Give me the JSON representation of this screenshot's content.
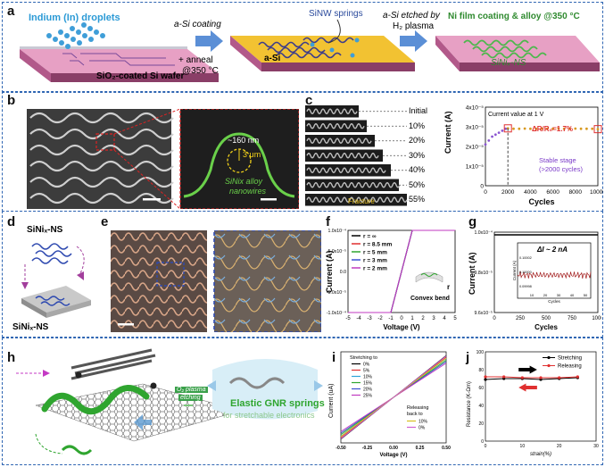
{
  "panels": {
    "a": {
      "label": "a",
      "indium": "Indium (In) droplets",
      "step1_top": "a-Si coating",
      "step1_bottom1": "+ anneal",
      "step1_bottom2": "@350 °C",
      "sinw": "SiNW springs",
      "asi": "a-Si",
      "step2_top1": "a-Si etched by",
      "step2_top2": "H₂ plasma",
      "step3_top": "Ni film coating & alloy @350 °C",
      "wafer": "SiO₂-coated Si wafer",
      "sinix": "SiNiₓ-NS"
    },
    "b": {
      "label": "b",
      "dim1": "~160 nm",
      "dim2": "3 μm",
      "caption1": "SiNix alloy",
      "caption2": "nanowires"
    },
    "c": {
      "label": "c",
      "strains": [
        "Initial",
        "10%",
        "20%",
        "30%",
        "40%",
        "50%",
        "55%"
      ],
      "fracture": "Fracture",
      "plot_title": "Current value at 1 V",
      "delta": "ΔR/R₀=1.7%",
      "stable1": "Stable stage",
      "stable2": "(>2000 cycles)",
      "ylabel": "Current (A)",
      "xlabel": "Cycles",
      "yticks": [
        "0",
        "1x10⁻⁵",
        "2x10⁻⁵",
        "3x10⁻⁵",
        "4x10⁻⁵"
      ],
      "xticks": [
        "0",
        "2000",
        "4000",
        "6000",
        "8000",
        "10000"
      ]
    },
    "d": {
      "label": "d",
      "top": "SiNiₓ-NS",
      "bottom": "SiNiₓ-NS"
    },
    "e": {
      "label": "e"
    },
    "f": {
      "label": "f",
      "ylabel": "Current (A)",
      "xlabel": "Voltage (V)",
      "yticks": [
        "1.0x10⁻⁴",
        "5.0x10⁻⁵",
        "0.0",
        "-5.0x10⁻⁵",
        "-1.0x10⁻⁴"
      ],
      "xticks": [
        "-5",
        "-4",
        "-3",
        "-2",
        "-1",
        "0",
        "1",
        "2",
        "3",
        "4",
        "5"
      ],
      "legend": [
        "r = ∞",
        "r = 8.5 mm",
        "r = 5 mm",
        "r = 3 mm",
        "r = 2 mm"
      ],
      "convex": "Convex bend",
      "r": "r"
    },
    "g": {
      "label": "g",
      "ylabel": "Current (A)",
      "xlabel": "Cycles",
      "yticks": [
        "1.0x10⁻⁴",
        "9.8x10⁻⁵",
        "9.6x10⁻⁵"
      ],
      "xticks": [
        "0",
        "250",
        "500",
        "750",
        "1000"
      ],
      "inset_label": "ΔI ~ 2 nA",
      "inset_ylabel": "Current (A)",
      "inset_xlabel": "Cycles",
      "inset_yticks": [
        "0.10002",
        "0.10000",
        "0.09998"
      ],
      "inset_xticks": [
        "10",
        "20",
        "30",
        "40",
        "50"
      ]
    },
    "h": {
      "label": "h",
      "plasma1": "O₂ plasma",
      "plasma2": "etching",
      "title1": "Elastic GNR springs",
      "title2": "for stretchable electronics"
    },
    "i": {
      "label": "i",
      "ylabel": "Current (uA)",
      "xlabel": "Voltage (V)",
      "xticks": [
        "-0.50",
        "-0.25",
        "0.00",
        "0.25",
        "0.50"
      ],
      "yticks": [
        "-10",
        "-5",
        "0",
        "5",
        "10"
      ],
      "legend_title": "Stretching to",
      "legend": [
        "0%",
        "5%",
        "10%",
        "15%",
        "20%",
        "25%"
      ],
      "release_title1": "Releasing",
      "release_title2": "back to",
      "release": [
        "10%",
        "0%"
      ]
    },
    "j": {
      "label": "j",
      "ylabel": "Resistance (K-Ωm)",
      "xlabel": "strain(%)",
      "xticks": [
        "0",
        "10",
        "20",
        "30"
      ],
      "yticks": [
        "0",
        "20",
        "40",
        "60",
        "80",
        "100"
      ],
      "legend": [
        "Stretching",
        "Releasing"
      ]
    }
  },
  "chart_data": [
    {
      "type": "scatter",
      "panel": "c",
      "title": "Current value at 1 V",
      "xlabel": "Cycles",
      "ylabel": "Current (A)",
      "xlim": [
        0,
        10000
      ],
      "ylim": [
        0,
        4e-05
      ],
      "series": [
        {
          "values_x": [
            0,
            300,
            600,
            900,
            1200,
            1500,
            1800,
            2000,
            2500,
            3000,
            3500,
            4000,
            4500,
            5000,
            5500,
            6000,
            6500,
            7000,
            7500,
            8000,
            8500,
            9000,
            9500,
            10000
          ],
          "values": [
            2.1e-05,
            2.3e-05,
            2.5e-05,
            2.6e-05,
            2.7e-05,
            2.8e-05,
            2.9e-05,
            2.92e-05,
            2.9e-05,
            2.9e-05,
            2.91e-05,
            2.9e-05,
            2.9e-05,
            2.91e-05,
            2.9e-05,
            2.9e-05,
            2.91e-05,
            2.9e-05,
            2.9e-05,
            2.91e-05,
            2.9e-05,
            2.9e-05,
            2.9e-05,
            2.88e-05
          ]
        }
      ]
    },
    {
      "type": "line",
      "panel": "f",
      "xlabel": "Voltage (V)",
      "ylabel": "Current (A)",
      "xlim": [
        -5,
        5
      ],
      "ylim": [
        -0.0001,
        0.0001
      ],
      "series": [
        {
          "name": "r = ∞",
          "x": [
            -5,
            -1,
            1,
            5
          ],
          "values": [
            -0.0001,
            -0.0001,
            0.0001,
            0.0001
          ]
        },
        {
          "name": "r = 8.5 mm",
          "x": [
            -5,
            -1,
            1,
            5
          ],
          "values": [
            -0.0001,
            -0.0001,
            0.0001,
            0.0001
          ]
        },
        {
          "name": "r = 5 mm",
          "x": [
            -5,
            -1,
            1,
            5
          ],
          "values": [
            -0.0001,
            -0.0001,
            0.0001,
            0.0001
          ]
        },
        {
          "name": "r = 3 mm",
          "x": [
            -5,
            -1,
            1,
            5
          ],
          "values": [
            -0.0001,
            -0.0001,
            0.0001,
            0.0001
          ]
        },
        {
          "name": "r = 2 mm",
          "x": [
            -5,
            -1,
            1,
            5
          ],
          "values": [
            -0.0001,
            -0.0001,
            0.0001,
            0.0001
          ]
        }
      ]
    },
    {
      "type": "line",
      "panel": "g",
      "xlabel": "Cycles",
      "ylabel": "Current (A)",
      "xlim": [
        0,
        1000
      ],
      "ylim": [
        9.6e-05,
        0.0001
      ],
      "series": [
        {
          "x": [
            0,
            1000
          ],
          "values": [
            9.98e-05,
            9.98e-05
          ]
        }
      ]
    },
    {
      "type": "line",
      "panel": "i",
      "xlabel": "Voltage (V)",
      "ylabel": "Current (uA)",
      "xlim": [
        -0.5,
        0.5
      ],
      "ylim": [
        -12,
        12
      ],
      "series": [
        {
          "name": "0%",
          "x": [
            -0.5,
            0.5
          ],
          "values": [
            -11,
            11
          ]
        },
        {
          "name": "5%",
          "x": [
            -0.5,
            0.5
          ],
          "values": [
            -10.6,
            10.6
          ]
        },
        {
          "name": "10%",
          "x": [
            -0.5,
            0.5
          ],
          "values": [
            -10.2,
            10.2
          ]
        },
        {
          "name": "15%",
          "x": [
            -0.5,
            0.5
          ],
          "values": [
            -9.8,
            9.8
          ]
        },
        {
          "name": "20%",
          "x": [
            -0.5,
            0.5
          ],
          "values": [
            -9.4,
            9.4
          ]
        },
        {
          "name": "25%",
          "x": [
            -0.5,
            0.5
          ],
          "values": [
            -9.0,
            9.0
          ]
        },
        {
          "name": "10%",
          "x": [
            -0.5,
            0.5
          ],
          "values": [
            -10.3,
            10.3
          ]
        },
        {
          "name": "0%",
          "x": [
            -0.5,
            0.5
          ],
          "values": [
            -10.9,
            10.9
          ]
        }
      ]
    },
    {
      "type": "line",
      "panel": "j",
      "xlabel": "strain(%)",
      "ylabel": "Resistance (K-Ωm)",
      "xlim": [
        0,
        30
      ],
      "ylim": [
        0,
        100
      ],
      "series": [
        {
          "name": "Stretching",
          "x": [
            0,
            5,
            10,
            15,
            20,
            25
          ],
          "values": [
            69,
            70,
            70,
            69,
            70,
            71
          ]
        },
        {
          "name": "Releasing",
          "x": [
            0,
            5,
            10,
            15,
            20,
            25
          ],
          "values": [
            72,
            72,
            71,
            71,
            71,
            72
          ]
        }
      ]
    }
  ]
}
